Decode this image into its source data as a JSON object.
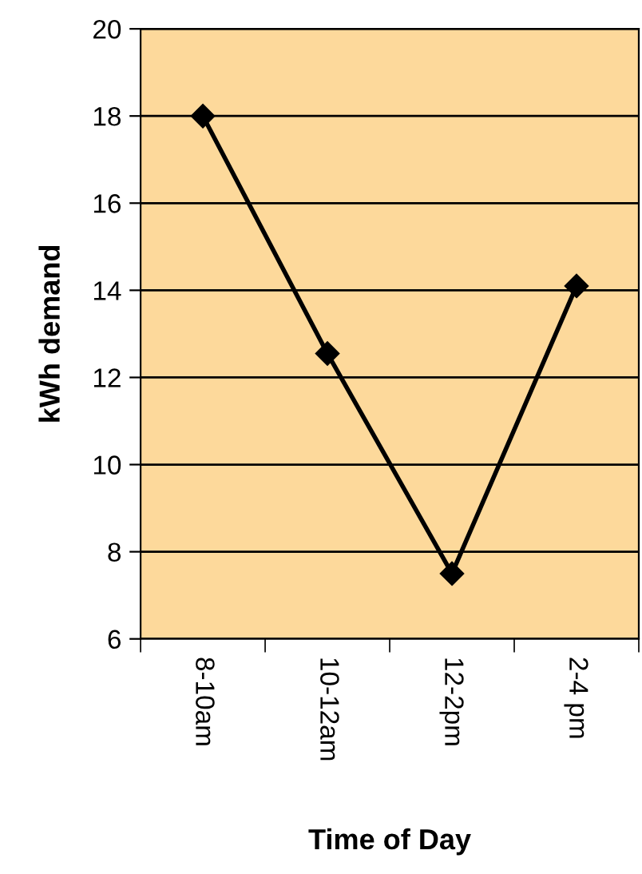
{
  "chart_data": {
    "type": "line",
    "xlabel": "Time of Day",
    "ylabel": "kWh demand",
    "categories": [
      "8-10am",
      "10-12am",
      "12-2pm",
      "2-4 pm"
    ],
    "series": [
      {
        "color": "#000000",
        "values": [
          18,
          12.55,
          7.5,
          14.1
        ]
      }
    ],
    "ylim": [
      6,
      20
    ],
    "yticks": [
      6,
      8,
      10,
      12,
      14,
      16,
      18,
      20
    ],
    "grid": "y",
    "marker": "diamond",
    "line_style": "solid"
  }
}
